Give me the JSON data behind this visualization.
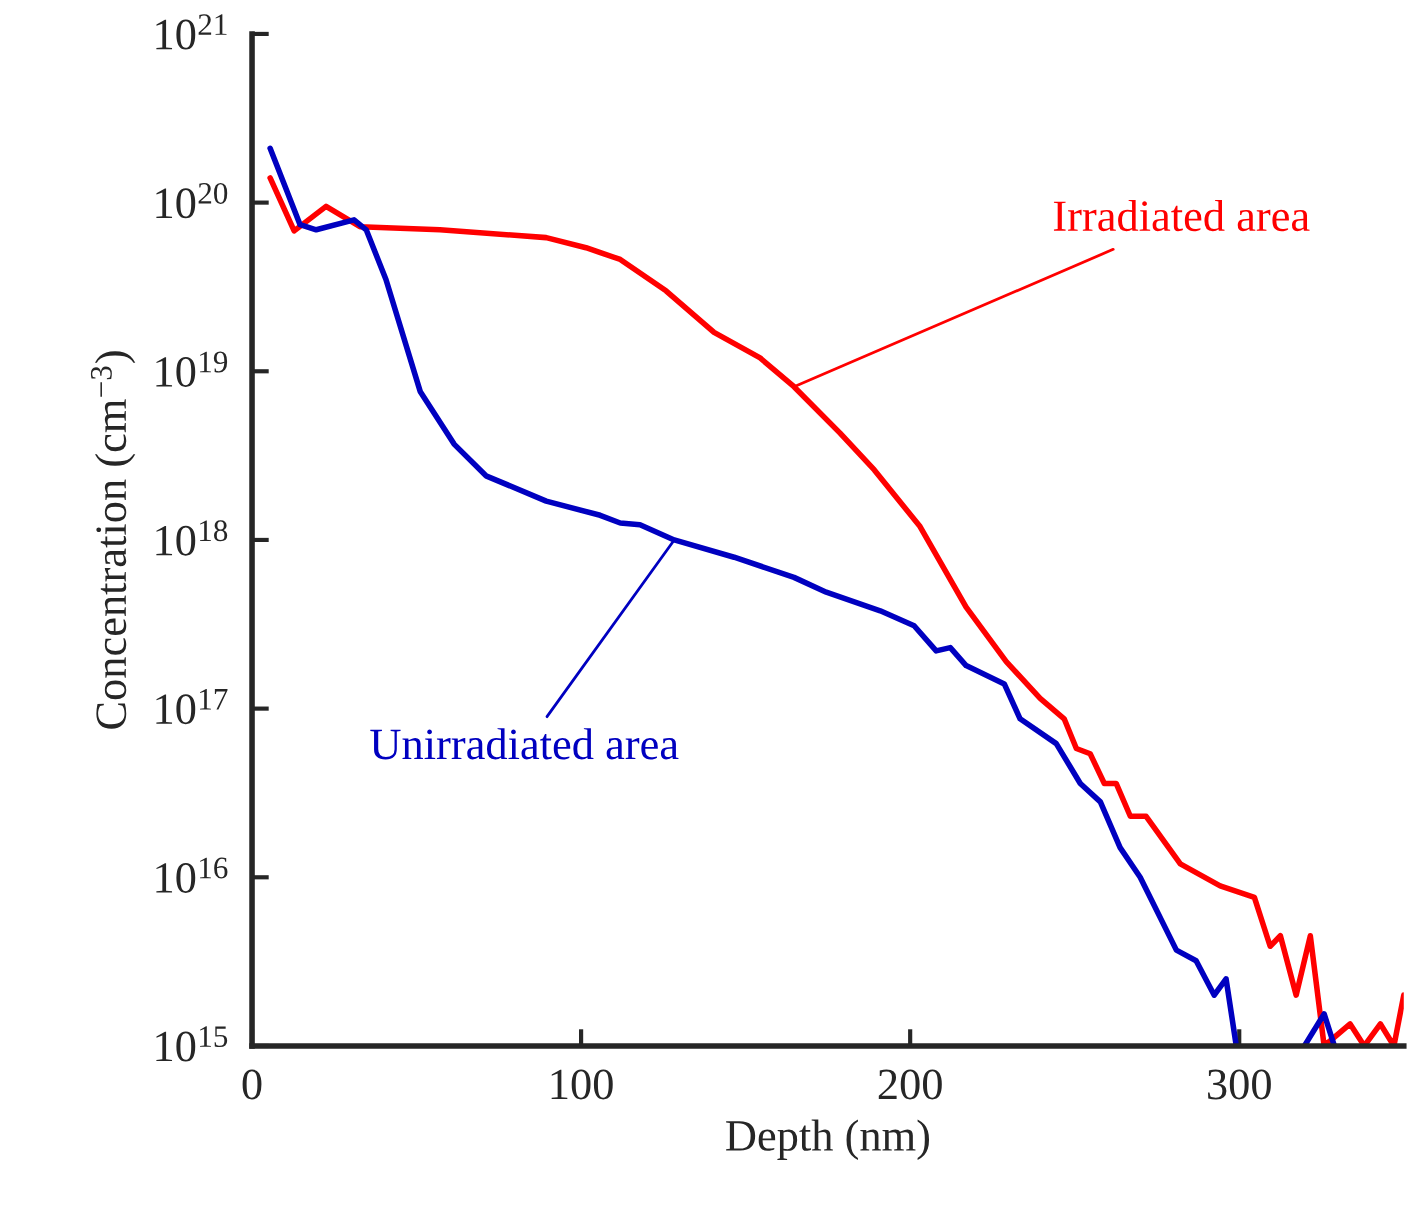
{
  "chart_data": {
    "type": "line",
    "xlabel": "Depth (nm)",
    "ylabel": "Concentration (cm$^{−3}$)",
    "log": "y",
    "xlim": [
      0,
      350
    ],
    "xticks": [
      0,
      100,
      200,
      300
    ],
    "ylim": [
      1000000000000000.0,
      1e+21
    ],
    "yticks": [
      {
        "value": 1000000000000000.0,
        "label": "10$^{15}$"
      },
      {
        "value": 1e+16,
        "label": "10$^{16}$"
      },
      {
        "value": 1e+17,
        "label": "10$^{17}$"
      },
      {
        "value": 1e+18,
        "label": "10$^{18}$"
      },
      {
        "value": 1e+19,
        "label": "10$^{19}$"
      },
      {
        "value": 1e+20,
        "label": "10$^{20}$"
      },
      {
        "value": 1e+21,
        "label": "10$^{21}$"
      }
    ],
    "grid": false,
    "legend": false,
    "marker": "none",
    "line_style": "solid",
    "series": [
      {
        "name": "Irradiated area",
        "color": "#ff0000",
        "x": [
          5.5,
          12.8,
          22.5,
          32.8,
          57.1,
          89.4,
          101.5,
          111.9,
          125.8,
          140.4,
          154.4,
          164.7,
          178.7,
          189.1,
          203,
          217,
          229.2,
          239.5,
          246.8,
          250.5,
          254.7,
          259,
          262.6,
          266.9,
          271.7,
          282.1,
          294.2,
          304.6,
          309.4,
          312.5,
          317.3,
          321.6,
          325.8,
          333.7,
          338,
          342.9,
          347,
          350
        ],
        "values": [
          1.4e+20,
          6.8e+19,
          9.5e+19,
          7.2e+19,
          6.9e+19,
          6.2e+19,
          5.4e+19,
          4.6e+19,
          3e+19,
          1.7e+19,
          1.2e+19,
          8.1e+18,
          4.3e+18,
          2.6e+18,
          1.2e+18,
          4e+17,
          1.9e+17,
          1.15e+17,
          8.7e+16,
          5.8e+16,
          5.4e+16,
          3.6e+16,
          3.6e+16,
          2.3e+16,
          2.3e+16,
          1.2e+16,
          8900000000000000.0,
          7600000000000000.0,
          3900000000000000.0,
          4500000000000000.0,
          2000000000000000.0,
          4500000000000000.0,
          1000000000000000.0,
          1350000000000000.0,
          1000000000000000.0,
          1350000000000000.0,
          1000000000000000.0,
          2000000000000000.0
        ]
      },
      {
        "name": "Unirradiated area",
        "color": "#0000c0",
        "x": [
          5.5,
          14.6,
          19.5,
          31,
          34.7,
          40.7,
          51.1,
          61.4,
          71.1,
          89.4,
          105.8,
          111.9,
          117.9,
          128.3,
          146.5,
          164.7,
          174.5,
          190.9,
          201.2,
          207.9,
          212.2,
          217,
          228.6,
          233.4,
          244.4,
          251.7,
          257.8,
          263.8,
          269.9,
          280.9,
          286.9,
          292.4,
          296,
          299.1,
          310,
          319.8,
          325.8,
          328.9
        ],
        "values": [
          2.1e+20,
          7.4e+19,
          6.9e+19,
          7.9e+19,
          6.9e+19,
          3.5e+19,
          7.6e+18,
          3.7e+18,
          2.4e+18,
          1.7e+18,
          1.4e+18,
          1.26e+18,
          1.23e+18,
          1e+18,
          7.9e+17,
          6e+17,
          4.9e+17,
          3.8e+17,
          3.1e+17,
          2.2e+17,
          2.3e+17,
          1.8e+17,
          1.4e+17,
          8.7e+16,
          6.2e+16,
          3.6e+16,
          2.8e+16,
          1.5e+16,
          1e+16,
          3700000000000000.0,
          3200000000000000.0,
          2000000000000000.0,
          2500000000000000.0,
          1000000000000000.0,
          null,
          1000000000000000.0,
          1550000000000000.0,
          1000000000000000.0
        ]
      }
    ]
  }
}
